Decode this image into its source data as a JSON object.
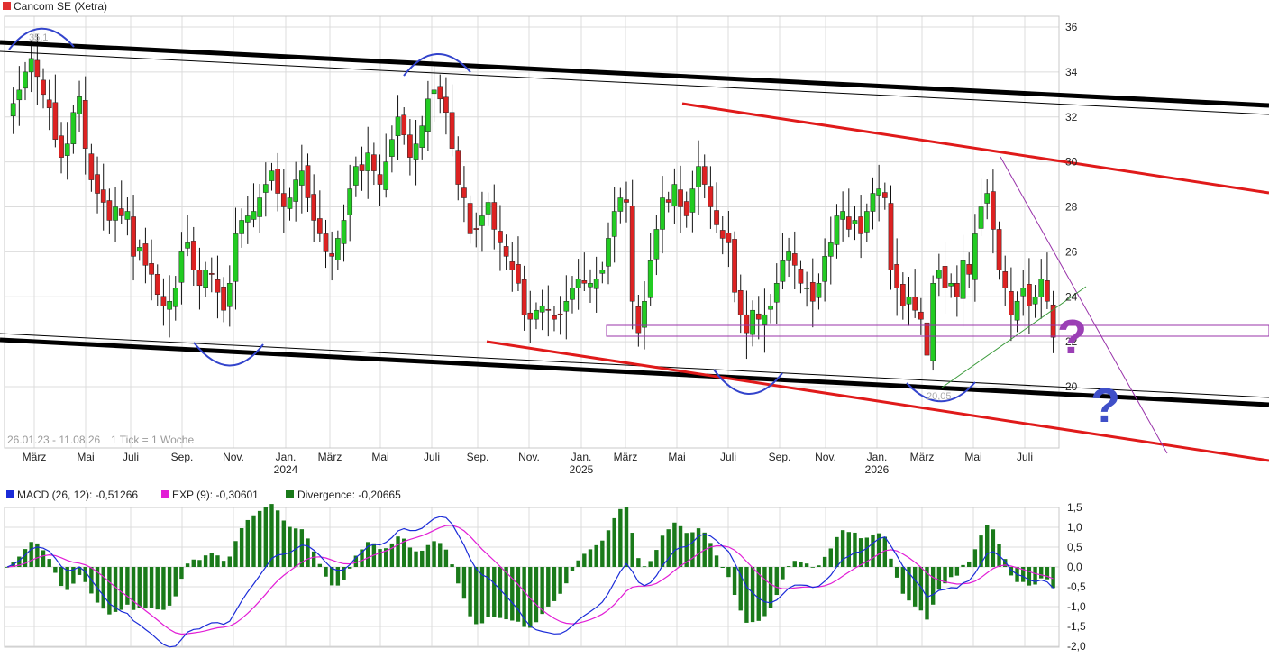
{
  "header": {
    "title": "Cancom SE (Xetra)",
    "swatch_color": "#e03030",
    "range_note": "26.01.23 - 11.08.26",
    "tick_note": "1 Tick = 1 Woche"
  },
  "macd_legend": [
    {
      "label": "MACD (26, 12): -0,51266",
      "color": "#1a2bd8"
    },
    {
      "label": "EXP (9): -0,30601",
      "color": "#e21ed6"
    },
    {
      "label": "Divergence: -0,20665",
      "color": "#1a7a1a"
    }
  ],
  "annotations": {
    "high_label": "35,1",
    "low_label": "20,05",
    "question_mark": "?",
    "question_colors": [
      "#9b3fb5",
      "#3f4fc8"
    ]
  },
  "colors": {
    "up": "#22cc22",
    "down": "#dd2222",
    "grid": "#dcdcdc",
    "channel_black": "#000000",
    "channel_red": "#e01a1a",
    "arc_blue": "#3344cc",
    "macd_line": "#1a2bd8",
    "signal_line": "#e21ed6",
    "divergence": "#1a7a1a",
    "support_box": "#9933aa"
  },
  "chart_data": [
    {
      "type": "candlestick",
      "title": "Cancom SE (Xetra)",
      "x_start": "2023-01-26",
      "x_end": "2026-08-11",
      "interval": "1 week",
      "y_axis_side": "right",
      "yticks": [
        20,
        22,
        24,
        26,
        28,
        30,
        32,
        34,
        36
      ],
      "ylim": [
        18.5,
        36.5
      ],
      "x_tick_labels": [
        "März",
        "Mai",
        "Juli",
        "Sep.",
        "Nov.",
        "Jan.",
        "März",
        "Mai",
        "Juli",
        "Sep.",
        "Nov.",
        "Jan.",
        "März",
        "Mai",
        "Juli",
        "Sep.",
        "Nov.",
        "Jan.",
        "März",
        "Mai",
        "Juli"
      ],
      "year_labels": [
        "2024",
        "2025",
        "2026"
      ],
      "closes": [
        31.8,
        32.6,
        33.2,
        34.0,
        34.6,
        33.8,
        33.0,
        32.4,
        31.0,
        30.2,
        30.8,
        32.2,
        32.9,
        30.6,
        29.2,
        28.6,
        28.2,
        27.4,
        28.0,
        27.6,
        27.8,
        25.8,
        26.2,
        25.4,
        25.0,
        24.1,
        23.6,
        23.8,
        24.4,
        26.0,
        26.4,
        25.2,
        24.5,
        25.2,
        25.0,
        24.2,
        23.4,
        24.6,
        26.8,
        27.4,
        27.6,
        27.8,
        28.4,
        29.0,
        29.6,
        28.6,
        28.0,
        28.4,
        29.2,
        29.6,
        28.4,
        27.4,
        26.8,
        26.0,
        25.8,
        26.6,
        27.4,
        28.8,
        29.8,
        29.6,
        30.4,
        29.6,
        29.0,
        30.0,
        31.0,
        32.0,
        31.2,
        30.2,
        30.8,
        31.6,
        32.8,
        33.2,
        32.8,
        32.2,
        30.6,
        29.0,
        28.4,
        26.8,
        27.0,
        27.6,
        28.2,
        27.0,
        26.4,
        25.8,
        25.2,
        24.6,
        23.2,
        23.0,
        23.4,
        23.6,
        23.4,
        23.0,
        23.2,
        23.8,
        24.4,
        24.8,
        24.6,
        24.6,
        24.8,
        25.2,
        26.6,
        27.8,
        28.4,
        28.2,
        23.8,
        22.4,
        23.8,
        25.6,
        27.0,
        28.4,
        28.2,
        29.0,
        28.0,
        27.6,
        28.8,
        29.8,
        29.0,
        28.0,
        27.2,
        26.6,
        26.4,
        24.2,
        23.2,
        22.4,
        23.4,
        23.0,
        23.2,
        23.6,
        24.6,
        25.6,
        26.0,
        25.4,
        24.6,
        24.4,
        23.8,
        24.6,
        25.8,
        26.4,
        27.6,
        27.8,
        27.0,
        27.4,
        26.8,
        27.8,
        28.6,
        28.8,
        28.4,
        25.2,
        24.4,
        23.6,
        24.0,
        23.4,
        23.0,
        21.4,
        24.6,
        25.2,
        24.4,
        24.6,
        24.0,
        25.6,
        25.0,
        26.8,
        28.0,
        28.6,
        27.0,
        25.2,
        24.4,
        23.2,
        23.8,
        24.4,
        23.6,
        24.0,
        24.8,
        23.8,
        22.2
      ]
    },
    {
      "type": "bar+line",
      "title": "MACD",
      "series": [
        {
          "name": "MACD (26, 12): -0,51266",
          "last_value": -0.51266
        },
        {
          "name": "EXP (9): -0,30601",
          "last_value": -0.30601
        },
        {
          "name": "Divergence: -0,20665",
          "last_value": -0.20665
        }
      ],
      "yticks": [
        -2.0,
        -1.5,
        -1.0,
        -0.5,
        0.0,
        0.5,
        1.0,
        1.5
      ],
      "ytick_labels": [
        "-2,0",
        "-1,5",
        "-1,0",
        "-0,5",
        "0,0",
        "0,5",
        "1,0",
        "1,5"
      ],
      "ylim": [
        -2.0,
        1.5
      ]
    }
  ]
}
